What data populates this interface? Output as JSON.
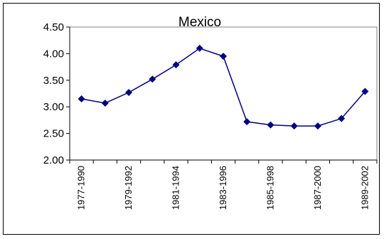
{
  "chart_data": {
    "type": "line",
    "title": "Mexico",
    "xlabel": "",
    "ylabel": "",
    "ylim": [
      2.0,
      4.5
    ],
    "yticks": [
      "2.00",
      "2.50",
      "3.00",
      "3.50",
      "4.00",
      "4.50"
    ],
    "x": [
      "1977-1990",
      "",
      "1979-1992",
      "",
      "1981-1994",
      "",
      "1983-1996",
      "",
      "1985-1998",
      "",
      "1987-2000",
      "",
      "1989-2002"
    ],
    "series": [
      {
        "values": [
          3.15,
          3.07,
          3.27,
          3.52,
          3.79,
          4.1,
          3.95,
          2.72,
          2.66,
          2.64,
          2.64,
          2.78,
          3.29
        ]
      }
    ],
    "grid": false,
    "legend": "none",
    "colors": {
      "line": "#000080",
      "marker": "#000080",
      "axis": "#808080",
      "frame": "#000000"
    }
  }
}
